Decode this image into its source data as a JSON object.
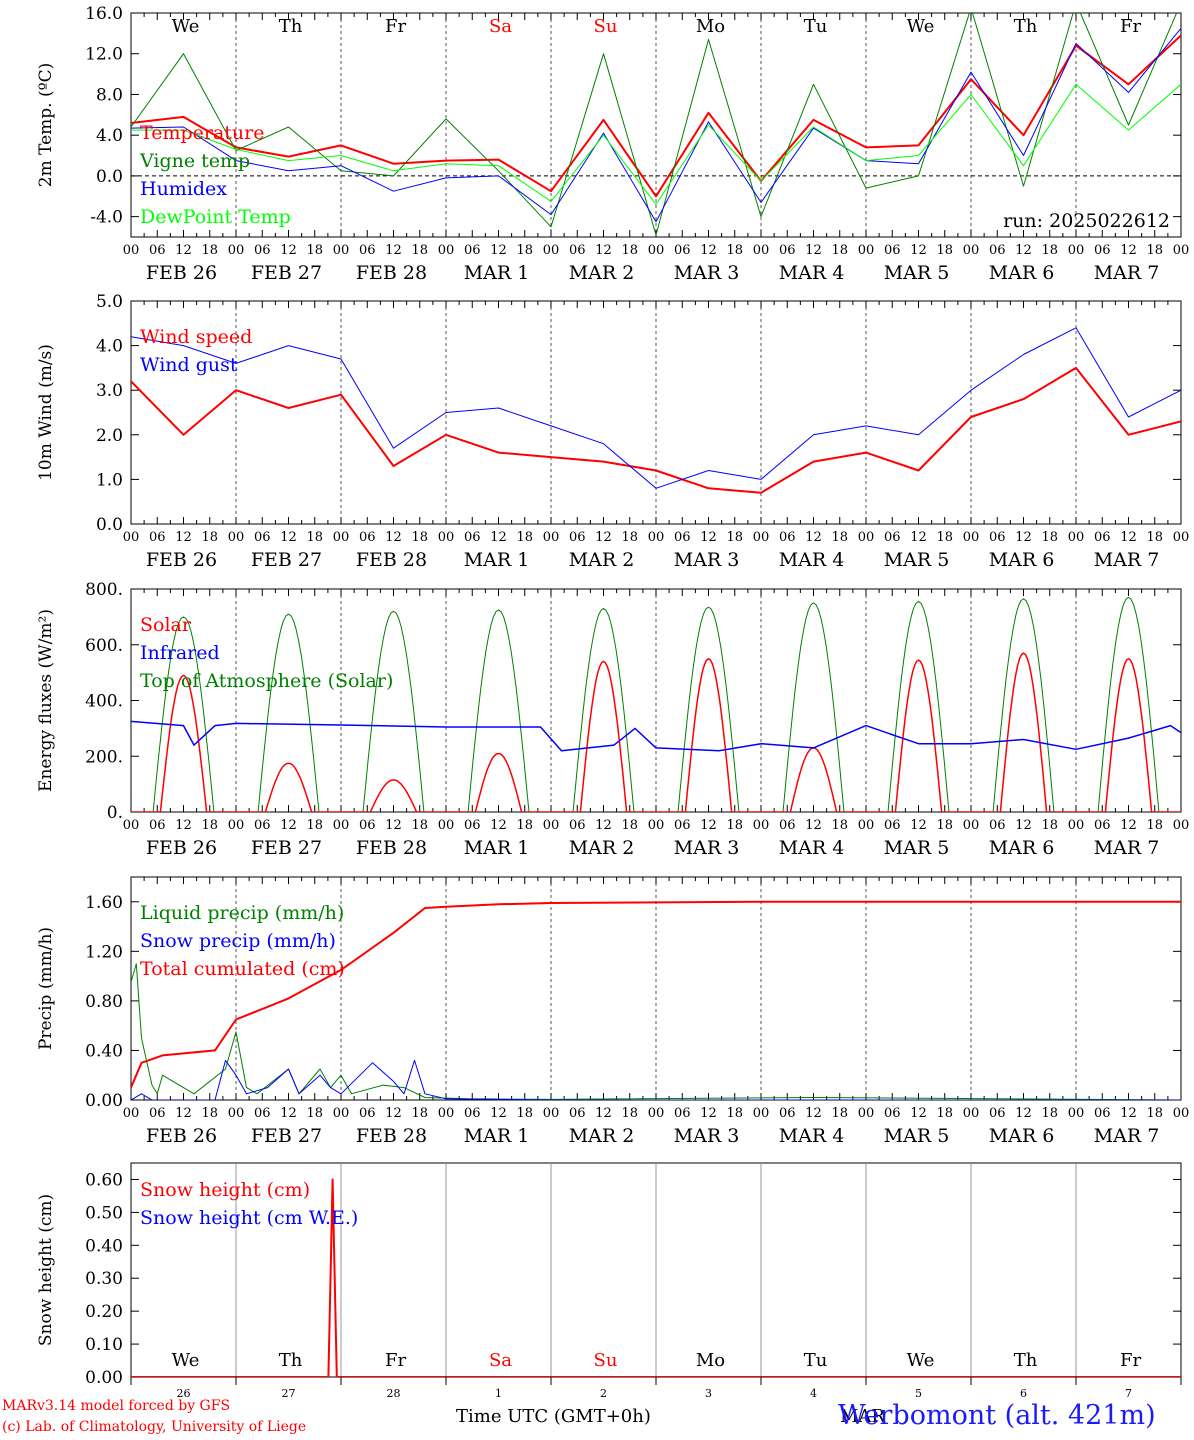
{
  "footer": {
    "model_line": "MARv3.14 model forced by GFS",
    "lab_line": "(c) Lab. of Climatology, University of Liege",
    "xlabel": "Time UTC (GMT+0h)",
    "station": "Werbomont (alt. 421m)",
    "stray_label": "MAR"
  },
  "colors": {
    "red": "#ff0000",
    "blue": "#0000ff",
    "green": "#008000",
    "lightgreen": "#00ff00",
    "black": "#000000",
    "grid": "#555555",
    "gray": "#999999"
  },
  "chart_data": [
    {
      "type": "line",
      "ylabel": "2m Temp. (ºC)",
      "ylim": [
        -6,
        16
      ],
      "yticks": [
        "16.0",
        "12.0",
        "8.0",
        "4.0",
        "0.0",
        "-4.0"
      ],
      "ytick_values": [
        16,
        12,
        8,
        4,
        0,
        -4
      ],
      "zero_line": true,
      "day_names": [
        {
          "label": "We",
          "color": "#000000"
        },
        {
          "label": "Th",
          "color": "#000000"
        },
        {
          "label": "Fr",
          "color": "#000000"
        },
        {
          "label": "Sa",
          "color": "#ff0000"
        },
        {
          "label": "Su",
          "color": "#ff0000"
        },
        {
          "label": "Mo",
          "color": "#000000"
        },
        {
          "label": "Tu",
          "color": "#000000"
        },
        {
          "label": "We",
          "color": "#000000"
        },
        {
          "label": "Th",
          "color": "#000000"
        },
        {
          "label": "Fr",
          "color": "#000000"
        }
      ],
      "annotation": "run: 2025022612",
      "legend": [
        {
          "name": "Temperature",
          "color": "#ff0000"
        },
        {
          "name": "Vigne temp",
          "color": "#008000"
        },
        {
          "name": "Humidex",
          "color": "#0000ff"
        },
        {
          "name": "DewPoint Temp",
          "color": "#00ff00"
        }
      ],
      "x_days": [
        0,
        0.5,
        1,
        1.5,
        2,
        2.5,
        3,
        3.5,
        4,
        4.5,
        5,
        5.5,
        6,
        6.5,
        7,
        7.5,
        8,
        8.5,
        9,
        9.5,
        10
      ],
      "series": [
        {
          "name": "Temperature",
          "color": "#ff0000",
          "width": 2,
          "values": [
            5.2,
            5.8,
            2.8,
            1.9,
            3.0,
            1.2,
            1.5,
            1.6,
            -1.5,
            5.5,
            -2.0,
            6.2,
            -0.5,
            5.5,
            2.8,
            3.0,
            9.5,
            4.0,
            12.8,
            9.0,
            13.8
          ]
        },
        {
          "name": "Vigne temp",
          "color": "#008000",
          "width": 1,
          "values": [
            4.8,
            12.0,
            2.5,
            4.8,
            0.5,
            0.0,
            5.6,
            0.5,
            -5.0,
            12.0,
            -5.8,
            13.4,
            -4.0,
            9.0,
            -1.2,
            0.0,
            16.5,
            -1.0,
            17.0,
            5.0,
            17.0
          ]
        },
        {
          "name": "Humidex",
          "color": "#0000ff",
          "width": 1,
          "values": [
            4.7,
            4.8,
            1.5,
            0.5,
            1.0,
            -1.5,
            -0.2,
            0.0,
            -3.8,
            4.2,
            -4.5,
            5.3,
            -2.6,
            4.7,
            1.5,
            1.2,
            10.2,
            2.0,
            13.0,
            8.2,
            14.5
          ]
        },
        {
          "name": "DewPoint Temp",
          "color": "#00ff00",
          "width": 1,
          "values": [
            4.5,
            4.5,
            2.6,
            1.5,
            2.0,
            0.5,
            1.2,
            1.0,
            -2.5,
            4.0,
            -2.8,
            5.0,
            -0.5,
            4.8,
            1.5,
            2.0,
            8.0,
            1.0,
            9.0,
            4.5,
            9.0
          ]
        }
      ]
    },
    {
      "type": "line",
      "ylabel": "10m Wind (m/s)",
      "ylim": [
        0,
        5
      ],
      "yticks": [
        "5.0",
        "4.0",
        "3.0",
        "2.0",
        "1.0",
        "0.0"
      ],
      "ytick_values": [
        5,
        4,
        3,
        2,
        1,
        0
      ],
      "legend": [
        {
          "name": "Wind speed",
          "color": "#ff0000"
        },
        {
          "name": "Wind gust",
          "color": "#0000ff"
        }
      ],
      "x_days": [
        0,
        0.5,
        1,
        1.5,
        2,
        2.5,
        3,
        3.5,
        4,
        4.5,
        5,
        5.5,
        6,
        6.5,
        7,
        7.5,
        8,
        8.5,
        9,
        9.5,
        10
      ],
      "series": [
        {
          "name": "Wind speed",
          "color": "#ff0000",
          "width": 2,
          "values": [
            3.2,
            2.0,
            3.0,
            2.6,
            2.9,
            1.3,
            2.0,
            1.6,
            1.5,
            1.4,
            1.2,
            0.8,
            0.7,
            1.4,
            1.6,
            1.2,
            2.4,
            2.8,
            3.5,
            2.0,
            2.3
          ]
        },
        {
          "name": "Wind gust",
          "color": "#0000ff",
          "width": 1,
          "values": [
            4.2,
            4.0,
            3.6,
            4.0,
            3.7,
            1.7,
            2.5,
            2.6,
            2.2,
            1.8,
            0.8,
            1.2,
            1.0,
            2.0,
            2.2,
            2.0,
            3.0,
            3.8,
            4.4,
            2.4,
            3.0
          ]
        }
      ]
    },
    {
      "type": "line",
      "ylabel": "Energy fluxes (W/m²)",
      "ylim": [
        0,
        800
      ],
      "yticks": [
        "800.",
        "600.",
        "400.",
        "200.",
        "0."
      ],
      "ytick_values": [
        800,
        600,
        400,
        200,
        0
      ],
      "legend": [
        {
          "name": "Solar",
          "color": "#ff0000"
        },
        {
          "name": "Infrared",
          "color": "#0000ff"
        },
        {
          "name": "Top of Atmosphere (Solar)",
          "color": "#008000"
        }
      ],
      "toa_peaks": [
        700,
        710,
        720,
        725,
        730,
        735,
        750,
        755,
        765,
        770
      ],
      "solar_peaks": [
        490,
        175,
        115,
        210,
        540,
        550,
        230,
        545,
        570,
        550
      ],
      "infrared": {
        "x_days": [
          0,
          0.5,
          0.6,
          0.8,
          1,
          2,
          3,
          3.9,
          4.1,
          4.6,
          4.8,
          5,
          5.6,
          6,
          6.5,
          7,
          7.5,
          8,
          8.5,
          9,
          9.5,
          9.9,
          10
        ],
        "values": [
          325,
          310,
          240,
          310,
          318,
          312,
          305,
          305,
          220,
          240,
          300,
          230,
          220,
          245,
          230,
          310,
          245,
          245,
          260,
          225,
          265,
          310,
          285
        ]
      },
      "series": [
        {
          "name": "Solar",
          "color": "#ff0000"
        },
        {
          "name": "Infrared",
          "color": "#0000ff"
        },
        {
          "name": "Top of Atmosphere (Solar)",
          "color": "#008000"
        }
      ]
    },
    {
      "type": "line",
      "ylabel": "Precip (mm/h)",
      "ylim": [
        0,
        1.8
      ],
      "yticks": [
        "1.60",
        "1.20",
        "0.80",
        "0.40",
        "0.00"
      ],
      "ytick_values": [
        1.6,
        1.2,
        0.8,
        0.4,
        0
      ],
      "legend": [
        {
          "name": "Liquid precip (mm/h)",
          "color": "#008000"
        },
        {
          "name": "Snow precip (mm/h)",
          "color": "#0000ff"
        },
        {
          "name": "Total cumulated (cm)",
          "color": "#ff0000"
        }
      ],
      "series": [
        {
          "name": "Total cumulated (cm)",
          "color": "#ff0000",
          "width": 2,
          "x_days": [
            0,
            0.1,
            0.3,
            0.8,
            1.0,
            1.5,
            2.0,
            2.5,
            2.8,
            3.0,
            3.5,
            4.0,
            6.0,
            10.0
          ],
          "values": [
            0.1,
            0.3,
            0.36,
            0.4,
            0.65,
            0.82,
            1.05,
            1.35,
            1.55,
            1.56,
            1.58,
            1.59,
            1.6,
            1.6
          ]
        },
        {
          "name": "Liquid precip (mm/h)",
          "color": "#008000",
          "width": 1,
          "x_days": [
            0,
            0.05,
            0.1,
            0.2,
            0.25,
            0.3,
            0.6,
            0.9,
            1.0,
            1.1,
            1.2,
            1.5,
            1.6,
            1.8,
            1.9,
            2.0,
            2.1,
            2.4,
            2.6,
            2.8,
            3.2,
            4.0,
            6.5,
            10.0
          ],
          "values": [
            0.95,
            1.1,
            0.5,
            0.12,
            0.05,
            0.2,
            0.05,
            0.25,
            0.55,
            0.1,
            0.05,
            0.25,
            0.05,
            0.25,
            0.1,
            0.2,
            0.05,
            0.12,
            0.1,
            0.02,
            0.01,
            0.005,
            0.02,
            0.0
          ]
        },
        {
          "name": "Snow precip (mm/h)",
          "color": "#0000ff",
          "width": 1,
          "x_days": [
            0,
            0.1,
            0.2,
            0.8,
            0.9,
            1.0,
            1.1,
            1.3,
            1.5,
            1.6,
            1.8,
            1.9,
            2.0,
            2.3,
            2.5,
            2.6,
            2.7,
            2.8,
            3.0,
            4.0,
            10.0
          ],
          "values": [
            0.0,
            0.05,
            0.0,
            0.0,
            0.32,
            0.2,
            0.05,
            0.1,
            0.25,
            0.05,
            0.2,
            0.1,
            0.05,
            0.3,
            0.15,
            0.05,
            0.32,
            0.05,
            0.01,
            0.0,
            0.0
          ]
        }
      ]
    },
    {
      "type": "line",
      "ylabel": "Snow height (cm)",
      "ylim": [
        0,
        0.65
      ],
      "yticks": [
        "0.60",
        "0.50",
        "0.40",
        "0.30",
        "0.20",
        "0.10",
        "0.00"
      ],
      "ytick_values": [
        0.6,
        0.5,
        0.4,
        0.3,
        0.2,
        0.1,
        0
      ],
      "legend": [
        {
          "name": "Snow height (cm)",
          "color": "#ff0000"
        },
        {
          "name": "Snow height (cm W.E.)",
          "color": "#0000ff"
        }
      ],
      "day_names": [
        {
          "label": "We",
          "color": "#000000"
        },
        {
          "label": "Th",
          "color": "#000000"
        },
        {
          "label": "Fr",
          "color": "#000000"
        },
        {
          "label": "Sa",
          "color": "#ff0000"
        },
        {
          "label": "Su",
          "color": "#ff0000"
        },
        {
          "label": "Mo",
          "color": "#000000"
        },
        {
          "label": "Tu",
          "color": "#000000"
        },
        {
          "label": "We",
          "color": "#000000"
        },
        {
          "label": "Th",
          "color": "#000000"
        },
        {
          "label": "Fr",
          "color": "#000000"
        }
      ],
      "day_numbers": [
        "26",
        "27",
        "28",
        "1",
        "2",
        "3",
        "4",
        "5",
        "6",
        "7"
      ],
      "series": [
        {
          "name": "Snow height (cm)",
          "color": "#ff0000",
          "width": 2,
          "x_days": [
            0,
            1.88,
            1.92,
            1.96,
            2.0,
            10.0
          ],
          "values": [
            0,
            0,
            0.6,
            0,
            0,
            0
          ]
        }
      ]
    }
  ],
  "x_axis": {
    "hour_ticks": [
      "00",
      "06",
      "12",
      "18"
    ],
    "end_tick": "00",
    "date_labels": [
      "FEB 26",
      "FEB 27",
      "FEB 28",
      "MAR  1",
      "MAR  2",
      "MAR  3",
      "MAR  4",
      "MAR  5",
      "MAR  6",
      "MAR  7"
    ]
  }
}
